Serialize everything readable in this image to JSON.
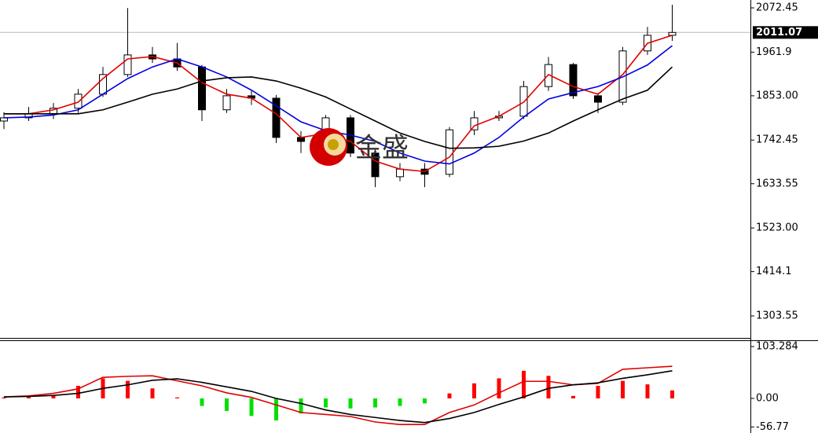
{
  "chart_data": [
    {
      "type": "candlestick",
      "open": [
        1790,
        1798,
        1808,
        1822,
        1857,
        1906,
        1955,
        1945,
        1925,
        1818,
        1853,
        1847,
        1749,
        1739,
        1798,
        1710,
        1651,
        1670,
        1657,
        1768,
        1798,
        1802,
        1876,
        1931,
        1853,
        1837,
        1965,
        2004
      ],
      "high": [
        1812,
        1825,
        1835,
        1870,
        1925,
        2072,
        1975,
        1985,
        1930,
        1870,
        1865,
        1855,
        1765,
        1805,
        1805,
        1720,
        1685,
        1685,
        1775,
        1815,
        1815,
        1890,
        1950,
        1935,
        1860,
        1975,
        2025,
        2080
      ],
      "low": [
        1770,
        1790,
        1795,
        1810,
        1850,
        1900,
        1935,
        1915,
        1790,
        1810,
        1830,
        1735,
        1710,
        1730,
        1700,
        1625,
        1640,
        1625,
        1650,
        1755,
        1790,
        1795,
        1865,
        1845,
        1810,
        1830,
        1955,
        1990
      ],
      "close": [
        1798,
        1808,
        1822,
        1857,
        1906,
        1955,
        1945,
        1925,
        1818,
        1853,
        1847,
        1749,
        1739,
        1798,
        1710,
        1651,
        1670,
        1657,
        1768,
        1798,
        1802,
        1876,
        1931,
        1853,
        1837,
        1965,
        2004,
        2011.07
      ],
      "lines": [
        {
          "color": "#e00000",
          "values": [
            1808,
            1808,
            1818,
            1837,
            1896,
            1945,
            1951,
            1935,
            1886,
            1857,
            1847,
            1808,
            1749,
            1759,
            1739,
            1690,
            1670,
            1664,
            1700,
            1778,
            1802,
            1837,
            1906,
            1876,
            1857,
            1906,
            1984,
            2004
          ]
        },
        {
          "color": "#0000e0",
          "values": [
            1798,
            1800,
            1805,
            1818,
            1857,
            1896,
            1925,
            1945,
            1925,
            1900,
            1867,
            1828,
            1788,
            1766,
            1755,
            1739,
            1710,
            1690,
            1683,
            1710,
            1749,
            1800,
            1845,
            1861,
            1876,
            1900,
            1930,
            1978
          ]
        },
        {
          "color": "#000000",
          "values": [
            1808,
            1808,
            1808,
            1808,
            1818,
            1837,
            1857,
            1870,
            1890,
            1898,
            1900,
            1890,
            1872,
            1850,
            1820,
            1790,
            1760,
            1739,
            1722,
            1723,
            1727,
            1740,
            1760,
            1790,
            1818,
            1845,
            1867,
            1925
          ]
        }
      ],
      "last_price": 2011.07,
      "annotation": "金盛",
      "ylim": [
        1248.6,
        2092.1
      ],
      "yticks": [
        2072.45,
        1961.9,
        {
          "value": 1853,
          "label": "1853.00"
        },
        1742.45,
        1633.55,
        {
          "value": 1523,
          "label": "1523.00"
        },
        1414.1,
        1303.55
      ]
    },
    {
      "type": "macd",
      "histogram": [
        2,
        3,
        5,
        25,
        40,
        35,
        20,
        2,
        -15,
        -25,
        -35,
        -44,
        -30,
        -18,
        -20,
        -18,
        -15,
        -10,
        10,
        30,
        40,
        55,
        45,
        5,
        25,
        35,
        28,
        16
      ],
      "pos_color": "#ff0000",
      "neg_color": "#00e000",
      "lines": [
        {
          "color": "#e00000",
          "values": [
            3,
            5,
            10,
            19,
            42,
            44,
            45,
            35,
            25,
            11,
            2,
            -13,
            -28,
            -32,
            -36,
            -47,
            -52,
            -52,
            -28,
            -13,
            11,
            34,
            34,
            27,
            30,
            58,
            61,
            64
          ]
        },
        {
          "color": "#000000",
          "values": [
            3,
            4,
            6,
            10,
            20,
            27,
            36,
            39,
            32,
            23,
            14,
            0,
            -10,
            -23,
            -32,
            -38,
            -44,
            -48,
            -40,
            -28,
            -12,
            3,
            20,
            27,
            31,
            40,
            47,
            55
          ]
        }
      ],
      "ylim": [
        -68.9,
        115.8
      ],
      "yticks": [
        103.284,
        {
          "value": 0,
          "label": "0.00"
        },
        -56.77
      ]
    }
  ]
}
